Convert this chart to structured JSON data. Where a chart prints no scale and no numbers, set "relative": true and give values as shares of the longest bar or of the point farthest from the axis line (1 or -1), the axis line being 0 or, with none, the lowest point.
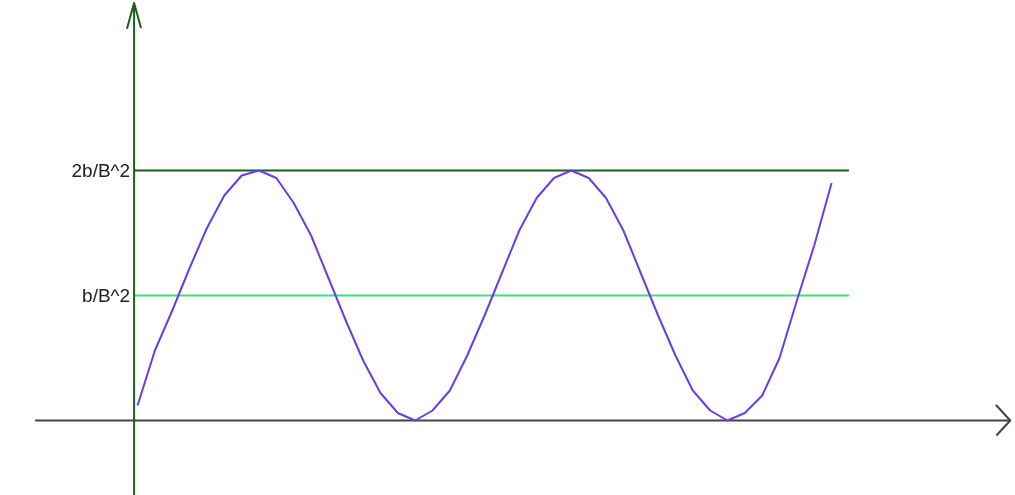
{
  "chart_data": {
    "type": "line",
    "relative": true,
    "categories": [
      null,
      null,
      null,
      null,
      null,
      null,
      null,
      null,
      null,
      null,
      null,
      null,
      null,
      null,
      null,
      null,
      null,
      null,
      null,
      null,
      null,
      null,
      null,
      null,
      null,
      null,
      null,
      null,
      null,
      null,
      null,
      null,
      null,
      null,
      null,
      null,
      null,
      null,
      null,
      null,
      null
    ],
    "series": [
      {
        "color": "#6a3de8",
        "values": [
          0.06,
          0.28,
          0.44,
          0.61,
          0.77,
          0.9,
          0.98,
          1.0,
          0.97,
          0.87,
          0.74,
          0.57,
          0.4,
          0.24,
          0.11,
          0.03,
          0.0,
          0.04,
          0.12,
          0.26,
          0.42,
          0.59,
          0.76,
          0.89,
          0.97,
          1.0,
          0.97,
          0.89,
          0.76,
          0.59,
          0.42,
          0.26,
          0.12,
          0.04,
          0.0,
          0.03,
          0.1,
          0.25,
          0.48,
          0.7,
          0.95
        ]
      }
    ],
    "ref_lines": [
      {
        "axis": "y",
        "value": 1,
        "label": "2b/B^2",
        "color": "#1d5e1d"
      },
      {
        "axis": "y",
        "value": 0.5,
        "label": "b/B^2",
        "color": "#3fe07a"
      }
    ],
    "grid": false,
    "marker": "none",
    "line_style": "solid"
  }
}
